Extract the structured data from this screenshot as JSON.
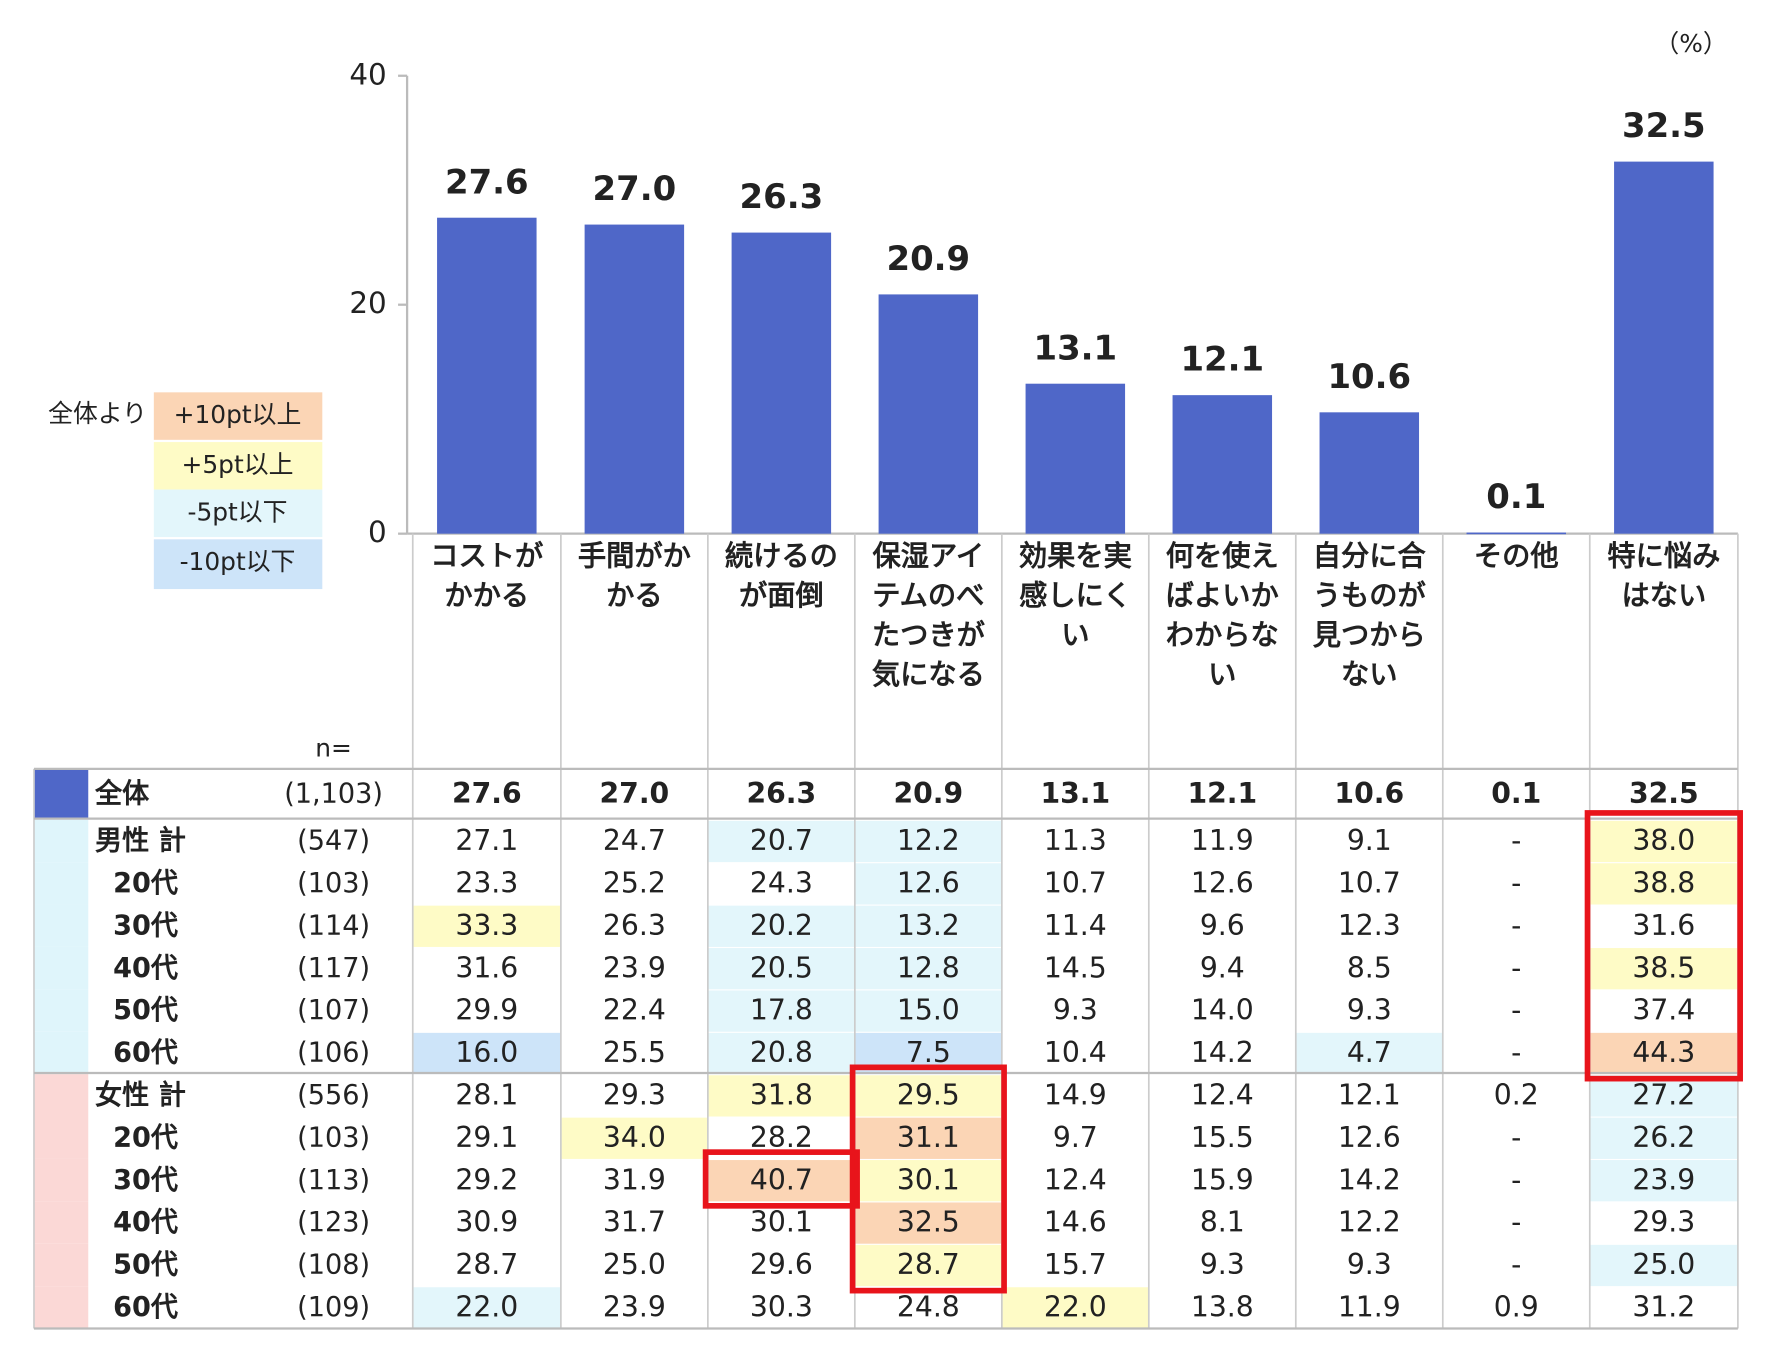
{
  "chart_data": {
    "type": "bar",
    "unit_label": "（%）",
    "categories": [
      "コストがかかる",
      "手間がかかる",
      "続けるのが面倒",
      "保湿アイテムのべたつきが気になる",
      "効果を実感しにくい",
      "何を使えばよいかわからない",
      "自分に合うものが見つからない",
      "その他",
      "特に悩みはない"
    ],
    "values": [
      27.6,
      27.0,
      26.3,
      20.9,
      13.1,
      12.1,
      10.6,
      0.1,
      32.5
    ],
    "value_labels": [
      "27.6",
      "27.0",
      "26.3",
      "20.9",
      "13.1",
      "12.1",
      "10.6",
      "0.1",
      "32.5"
    ],
    "color": "#4f67c8",
    "ylim": [
      0,
      40
    ],
    "yticks": [
      0,
      20,
      40
    ]
  },
  "legend": {
    "title": "全体より",
    "items": [
      {
        "label": "+10pt以上",
        "color": "#fbd5b5"
      },
      {
        "label": "+5pt以上",
        "color": "#fefbc6"
      },
      {
        "label": "-5pt以下",
        "color": "#e3f6fb"
      },
      {
        "label": "-10pt以下",
        "color": "#cde4f9"
      }
    ]
  },
  "table": {
    "n_label": "n=",
    "outline_color": "#e8141b",
    "rows": [
      {
        "label": "全体",
        "n": "(1,103)",
        "color": "#4f67c8",
        "cells": [
          "27.6",
          "27.0",
          "26.3",
          "20.9",
          "13.1",
          "12.1",
          "10.6",
          "0.1",
          "32.5"
        ],
        "shade": [
          null,
          null,
          null,
          null,
          null,
          null,
          null,
          null,
          null
        ]
      },
      {
        "label": "男性 計",
        "n": "(547)",
        "color": "#dff5fb",
        "cells": [
          "27.1",
          "24.7",
          "20.7",
          "12.2",
          "11.3",
          "11.9",
          "9.1",
          "-",
          "38.0"
        ],
        "shade": [
          null,
          null,
          2,
          2,
          null,
          null,
          null,
          null,
          1
        ]
      },
      {
        "label": "20代",
        "n": "(103)",
        "color": "#dff5fb",
        "cells": [
          "23.3",
          "25.2",
          "24.3",
          "12.6",
          "10.7",
          "12.6",
          "10.7",
          "-",
          "38.8"
        ],
        "shade": [
          null,
          null,
          null,
          2,
          null,
          null,
          null,
          null,
          1
        ]
      },
      {
        "label": "30代",
        "n": "(114)",
        "color": "#dff5fb",
        "cells": [
          "33.3",
          "26.3",
          "20.2",
          "13.2",
          "11.4",
          "9.6",
          "12.3",
          "-",
          "31.6"
        ],
        "shade": [
          1,
          null,
          2,
          2,
          null,
          null,
          null,
          null,
          null
        ]
      },
      {
        "label": "40代",
        "n": "(117)",
        "color": "#dff5fb",
        "cells": [
          "31.6",
          "23.9",
          "20.5",
          "12.8",
          "14.5",
          "9.4",
          "8.5",
          "-",
          "38.5"
        ],
        "shade": [
          null,
          null,
          2,
          2,
          null,
          null,
          null,
          null,
          1
        ]
      },
      {
        "label": "50代",
        "n": "(107)",
        "color": "#dff5fb",
        "cells": [
          "29.9",
          "22.4",
          "17.8",
          "15.0",
          "9.3",
          "14.0",
          "9.3",
          "-",
          "37.4"
        ],
        "shade": [
          null,
          null,
          2,
          2,
          null,
          null,
          null,
          null,
          null
        ]
      },
      {
        "label": "60代",
        "n": "(106)",
        "color": "#dff5fb",
        "cells": [
          "16.0",
          "25.5",
          "20.8",
          "7.5",
          "10.4",
          "14.2",
          "4.7",
          "-",
          "44.3"
        ],
        "shade": [
          3,
          null,
          2,
          3,
          null,
          null,
          2,
          null,
          0
        ]
      },
      {
        "label": "女性 計",
        "n": "(556)",
        "color": "#fbd8d6",
        "cells": [
          "28.1",
          "29.3",
          "31.8",
          "29.5",
          "14.9",
          "12.4",
          "12.1",
          "0.2",
          "27.2"
        ],
        "shade": [
          null,
          null,
          1,
          1,
          null,
          null,
          null,
          null,
          2
        ]
      },
      {
        "label": "20代",
        "n": "(103)",
        "color": "#fbd8d6",
        "cells": [
          "29.1",
          "34.0",
          "28.2",
          "31.1",
          "9.7",
          "15.5",
          "12.6",
          "-",
          "26.2"
        ],
        "shade": [
          null,
          1,
          null,
          0,
          null,
          null,
          null,
          null,
          2
        ]
      },
      {
        "label": "30代",
        "n": "(113)",
        "color": "#fbd8d6",
        "cells": [
          "29.2",
          "31.9",
          "40.7",
          "30.1",
          "12.4",
          "15.9",
          "14.2",
          "-",
          "23.9"
        ],
        "shade": [
          null,
          null,
          0,
          1,
          null,
          null,
          null,
          null,
          2
        ]
      },
      {
        "label": "40代",
        "n": "(123)",
        "color": "#fbd8d6",
        "cells": [
          "30.9",
          "31.7",
          "30.1",
          "32.5",
          "14.6",
          "8.1",
          "12.2",
          "-",
          "29.3"
        ],
        "shade": [
          null,
          null,
          null,
          0,
          null,
          null,
          null,
          null,
          null
        ]
      },
      {
        "label": "50代",
        "n": "(108)",
        "color": "#fbd8d6",
        "cells": [
          "28.7",
          "25.0",
          "29.6",
          "28.7",
          "15.7",
          "9.3",
          "9.3",
          "-",
          "25.0"
        ],
        "shade": [
          null,
          null,
          null,
          1,
          null,
          null,
          null,
          null,
          2
        ]
      },
      {
        "label": "60代",
        "n": "(109)",
        "color": "#fbd8d6",
        "cells": [
          "22.0",
          "23.9",
          "30.3",
          "24.8",
          "22.0",
          "13.8",
          "11.9",
          "0.9",
          "31.2"
        ],
        "shade": [
          2,
          null,
          null,
          null,
          1,
          null,
          null,
          null,
          null
        ]
      }
    ],
    "outlines": [
      {
        "column": 8,
        "rows": [
          1,
          6
        ]
      },
      {
        "column": 3,
        "rows": [
          7,
          11
        ]
      },
      {
        "column": 2,
        "rows": [
          9,
          9
        ]
      }
    ]
  }
}
